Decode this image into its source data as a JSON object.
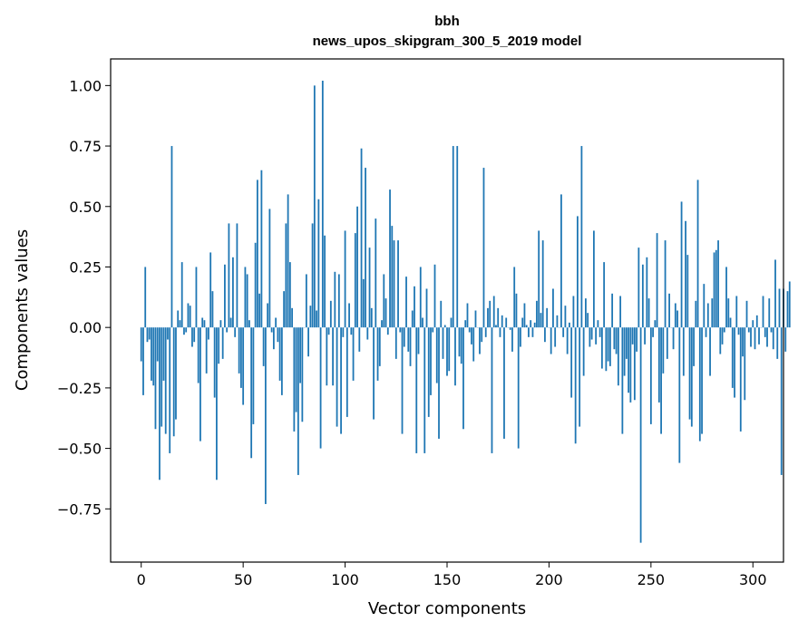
{
  "chart_data": {
    "type": "bar",
    "title": "bbh",
    "subtitle": "news_upos_skipgram_300_5_2019 model",
    "xlabel": "Vector components",
    "ylabel": "Components values",
    "xlim": [
      -15,
      315
    ],
    "ylim": [
      -0.97,
      1.11
    ],
    "xticks": [
      0,
      50,
      100,
      150,
      200,
      250,
      300
    ],
    "yticks": [
      -0.75,
      -0.5,
      -0.25,
      0.0,
      0.25,
      0.5,
      0.75,
      1.0
    ],
    "xtick_labels": [
      "0",
      "50",
      "100",
      "150",
      "200",
      "250",
      "300"
    ],
    "ytick_labels": [
      "−0.75",
      "−0.50",
      "−0.25",
      "0.00",
      "0.25",
      "0.50",
      "0.75",
      "1.00"
    ],
    "bar_color": "#1f77b4",
    "grid": false,
    "values": [
      -0.14,
      -0.28,
      0.25,
      -0.06,
      -0.05,
      -0.22,
      -0.24,
      -0.42,
      -0.14,
      -0.63,
      -0.41,
      -0.22,
      -0.44,
      -0.05,
      -0.52,
      0.75,
      -0.45,
      -0.38,
      0.07,
      0.03,
      0.27,
      -0.03,
      -0.02,
      0.1,
      0.09,
      -0.08,
      -0.06,
      0.25,
      -0.23,
      -0.47,
      0.04,
      0.03,
      -0.19,
      -0.05,
      0.31,
      0.15,
      -0.29,
      -0.63,
      -0.15,
      0.03,
      -0.13,
      0.26,
      -0.02,
      0.43,
      0.04,
      0.29,
      -0.04,
      0.43,
      -0.19,
      -0.25,
      -0.32,
      0.25,
      0.22,
      0.03,
      -0.54,
      -0.4,
      0.35,
      0.61,
      0.14,
      0.65,
      -0.16,
      -0.73,
      0.1,
      0.49,
      -0.02,
      -0.09,
      0.04,
      -0.06,
      -0.22,
      -0.28,
      0.15,
      0.43,
      0.55,
      0.27,
      0.08,
      -0.43,
      -0.35,
      -0.61,
      -0.23,
      -0.39,
      0.0,
      0.22,
      -0.12,
      0.09,
      0.43,
      1.0,
      0.07,
      0.53,
      -0.5,
      1.02,
      0.38,
      -0.24,
      -0.03,
      0.11,
      -0.24,
      0.23,
      -0.41,
      0.22,
      -0.44,
      -0.04,
      0.4,
      -0.37,
      0.1,
      -0.03,
      -0.22,
      0.39,
      0.5,
      -0.1,
      0.74,
      0.2,
      0.66,
      -0.05,
      0.33,
      0.08,
      -0.38,
      0.45,
      -0.22,
      -0.16,
      0.03,
      0.22,
      0.12,
      -0.03,
      0.57,
      0.42,
      0.36,
      -0.13,
      0.36,
      -0.02,
      -0.44,
      -0.08,
      0.21,
      -0.1,
      -0.16,
      0.07,
      0.17,
      -0.52,
      -0.11,
      0.25,
      0.04,
      -0.52,
      0.16,
      -0.37,
      -0.28,
      -0.02,
      0.26,
      -0.23,
      -0.46,
      0.11,
      -0.13,
      0.01,
      -0.2,
      -0.18,
      0.04,
      0.75,
      -0.24,
      0.75,
      -0.12,
      -0.15,
      -0.42,
      0.03,
      0.1,
      -0.02,
      -0.07,
      -0.14,
      0.07,
      0.0,
      -0.11,
      -0.06,
      0.66,
      -0.04,
      0.08,
      0.11,
      -0.52,
      0.13,
      0.01,
      0.08,
      -0.04,
      0.05,
      -0.46,
      0.04,
      0.0,
      -0.01,
      -0.1,
      0.25,
      0.14,
      -0.5,
      -0.08,
      0.04,
      0.1,
      0.01,
      -0.04,
      0.03,
      -0.04,
      0.02,
      0.11,
      0.4,
      0.06,
      0.36,
      -0.06,
      0.08,
      0.0,
      -0.11,
      0.16,
      -0.08,
      0.05,
      0.0,
      0.55,
      -0.04,
      0.09,
      -0.11,
      0.02,
      -0.29,
      0.13,
      -0.48,
      0.46,
      -0.41,
      0.75,
      -0.2,
      0.12,
      0.06,
      -0.08,
      -0.05,
      0.4,
      -0.07,
      0.03,
      -0.04,
      -0.17,
      0.27,
      -0.18,
      -0.14,
      -0.16,
      0.14,
      -0.09,
      -0.11,
      -0.24,
      0.13,
      -0.44,
      -0.2,
      -0.13,
      -0.27,
      -0.31,
      -0.07,
      -0.3,
      -0.1,
      0.33,
      -0.89,
      0.26,
      -0.07,
      0.29,
      0.12,
      -0.4,
      -0.04,
      0.03,
      0.39,
      -0.31,
      -0.44,
      -0.19,
      0.36,
      -0.13,
      0.14,
      0.0,
      -0.09,
      0.1,
      0.07,
      -0.56,
      0.52,
      -0.2,
      0.44,
      0.3,
      -0.38,
      -0.41,
      -0.16,
      0.11,
      0.61,
      -0.47,
      -0.44,
      0.18,
      -0.04,
      0.1,
      -0.2,
      0.12,
      0.31,
      0.32,
      0.36,
      -0.11,
      -0.07,
      -0.02,
      0.25,
      0.12,
      0.04,
      -0.25,
      -0.29,
      0.13,
      -0.03,
      -0.43,
      -0.12,
      -0.3,
      0.11,
      -0.02,
      -0.08,
      0.03,
      -0.09,
      0.05,
      -0.07,
      0.0,
      0.13,
      -0.04,
      -0.08,
      0.12,
      -0.02,
      -0.09,
      0.28,
      -0.13,
      0.16,
      -0.61,
      0.16,
      -0.1,
      0.15,
      0.19
    ]
  }
}
